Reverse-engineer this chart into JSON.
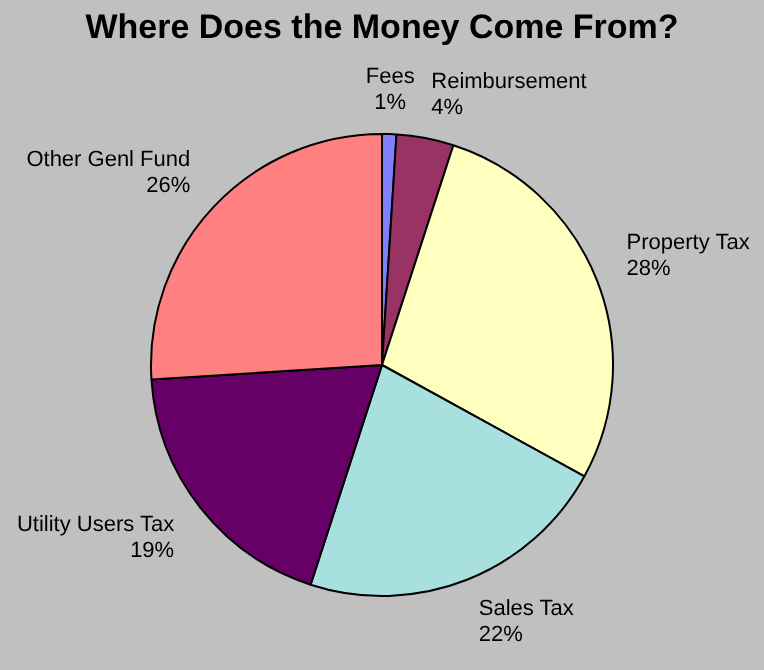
{
  "chart_data": {
    "type": "pie",
    "title": "Where Does the Money Come From?",
    "categories": [
      "Fees",
      "Reimbursement",
      "Property Tax",
      "Sales Tax",
      "Utility Users Tax",
      "Other Genl Fund"
    ],
    "values": [
      1,
      4,
      28,
      22,
      19,
      26
    ],
    "value_labels": [
      "1%",
      "4%",
      "28%",
      "22%",
      "19%",
      "26%"
    ],
    "colors": [
      "#8080ff",
      "#993366",
      "#ffffc0",
      "#a8e0e0",
      "#660066",
      "#ff8080"
    ],
    "legend": false
  }
}
